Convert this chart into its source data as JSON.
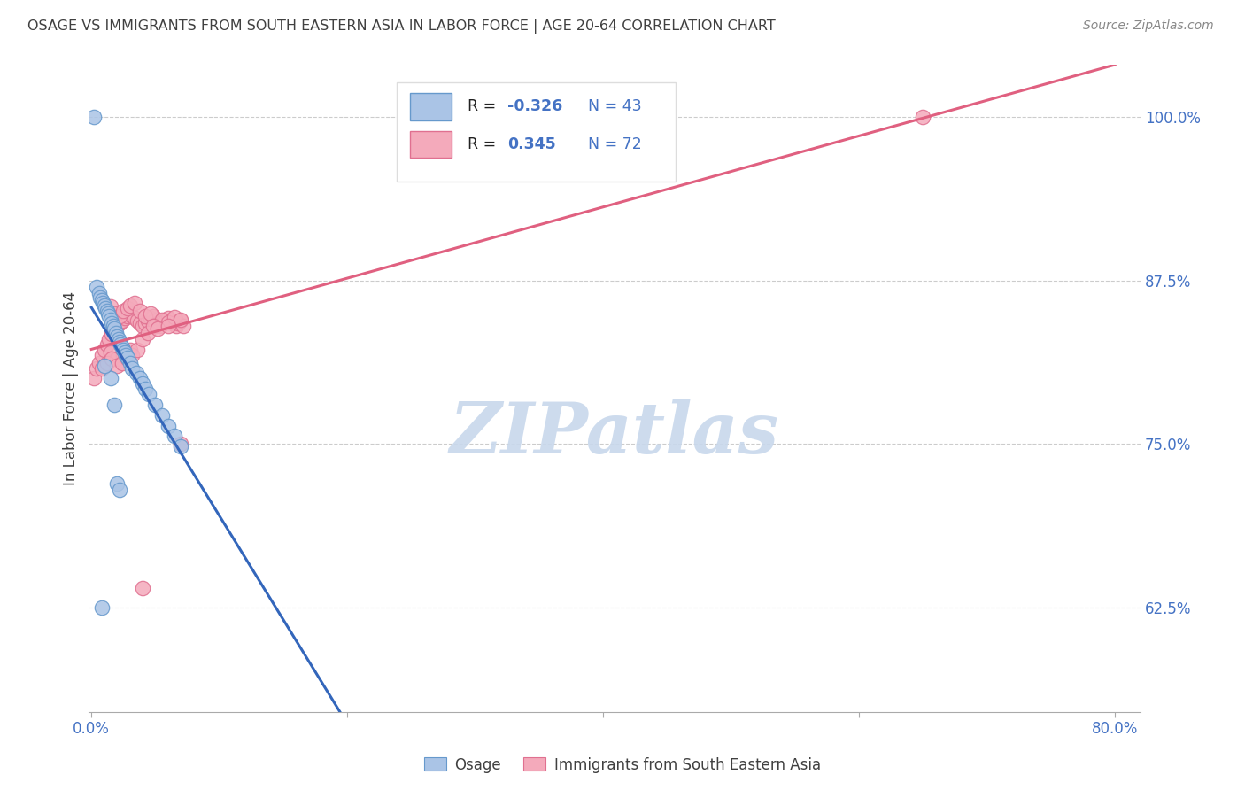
{
  "title": "OSAGE VS IMMIGRANTS FROM SOUTH EASTERN ASIA IN LABOR FORCE | AGE 20-64 CORRELATION CHART",
  "source": "Source: ZipAtlas.com",
  "ylabel": "In Labor Force | Age 20-64",
  "legend_labels": [
    "Osage",
    "Immigrants from South Eastern Asia"
  ],
  "osage_color": "#aac4e6",
  "immig_color": "#f4aabb",
  "osage_edge_color": "#6699cc",
  "immig_edge_color": "#e07090",
  "osage_line_color": "#3366bb",
  "immig_line_color": "#e06080",
  "r_osage": "-0.326",
  "n_osage": "43",
  "r_immig": "0.345",
  "n_immig": "72",
  "watermark": "ZIPatlas",
  "xlim_min": -0.002,
  "xlim_max": 0.82,
  "ylim_min": 0.545,
  "ylim_max": 1.04,
  "yticks": [
    0.625,
    0.75,
    0.875,
    1.0
  ],
  "ytick_labels": [
    "62.5%",
    "75.0%",
    "87.5%",
    "100.0%"
  ],
  "xticks": [
    0.0,
    0.2,
    0.4,
    0.6,
    0.8
  ],
  "xtick_labels": [
    "0.0%",
    "",
    "",
    "",
    "80.0%"
  ],
  "osage_x": [
    0.002,
    0.004,
    0.006,
    0.007,
    0.008,
    0.009,
    0.01,
    0.011,
    0.012,
    0.013,
    0.014,
    0.015,
    0.016,
    0.017,
    0.018,
    0.019,
    0.02,
    0.021,
    0.022,
    0.023,
    0.024,
    0.025,
    0.026,
    0.027,
    0.028,
    0.03,
    0.032,
    0.035,
    0.038,
    0.04,
    0.042,
    0.045,
    0.05,
    0.055,
    0.06,
    0.065,
    0.07,
    0.02,
    0.022,
    0.018,
    0.015,
    0.01,
    0.008
  ],
  "osage_y": [
    1.0,
    0.87,
    0.865,
    0.862,
    0.86,
    0.858,
    0.856,
    0.854,
    0.852,
    0.85,
    0.848,
    0.845,
    0.842,
    0.84,
    0.838,
    0.835,
    0.832,
    0.83,
    0.828,
    0.826,
    0.824,
    0.822,
    0.82,
    0.818,
    0.816,
    0.812,
    0.808,
    0.804,
    0.8,
    0.796,
    0.792,
    0.788,
    0.78,
    0.772,
    0.764,
    0.756,
    0.748,
    0.72,
    0.715,
    0.78,
    0.8,
    0.81,
    0.625
  ],
  "immig_x": [
    0.002,
    0.004,
    0.006,
    0.008,
    0.01,
    0.012,
    0.014,
    0.016,
    0.018,
    0.02,
    0.022,
    0.024,
    0.026,
    0.028,
    0.03,
    0.032,
    0.034,
    0.036,
    0.038,
    0.04,
    0.042,
    0.044,
    0.046,
    0.048,
    0.05,
    0.052,
    0.054,
    0.056,
    0.058,
    0.06,
    0.062,
    0.064,
    0.066,
    0.068,
    0.07,
    0.072,
    0.015,
    0.018,
    0.022,
    0.025,
    0.028,
    0.03,
    0.034,
    0.038,
    0.042,
    0.046,
    0.05,
    0.055,
    0.06,
    0.065,
    0.07,
    0.015,
    0.02,
    0.025,
    0.03,
    0.01,
    0.008,
    0.012,
    0.016,
    0.02,
    0.024,
    0.028,
    0.032,
    0.036,
    0.04,
    0.044,
    0.048,
    0.052,
    0.06,
    0.07,
    0.65,
    0.04
  ],
  "immig_y": [
    0.8,
    0.808,
    0.812,
    0.818,
    0.822,
    0.826,
    0.83,
    0.834,
    0.838,
    0.84,
    0.842,
    0.844,
    0.846,
    0.848,
    0.85,
    0.848,
    0.846,
    0.844,
    0.842,
    0.84,
    0.842,
    0.844,
    0.846,
    0.848,
    0.844,
    0.842,
    0.84,
    0.842,
    0.844,
    0.846,
    0.844,
    0.842,
    0.84,
    0.842,
    0.844,
    0.84,
    0.855,
    0.85,
    0.848,
    0.852,
    0.854,
    0.856,
    0.858,
    0.852,
    0.848,
    0.85,
    0.84,
    0.845,
    0.843,
    0.847,
    0.845,
    0.82,
    0.815,
    0.818,
    0.822,
    0.81,
    0.808,
    0.812,
    0.815,
    0.81,
    0.812,
    0.815,
    0.818,
    0.822,
    0.83,
    0.835,
    0.84,
    0.838,
    0.84,
    0.75,
    1.0,
    0.64
  ],
  "background_color": "#ffffff",
  "grid_color": "#cccccc",
  "tick_color": "#4472c4",
  "title_fontsize": 11.5,
  "tick_fontsize": 12.0,
  "watermark_fontsize": 58,
  "watermark_color": "#c8d8ec",
  "legend_box_color": "#4472c4",
  "legend_val_color": "#4472c4"
}
